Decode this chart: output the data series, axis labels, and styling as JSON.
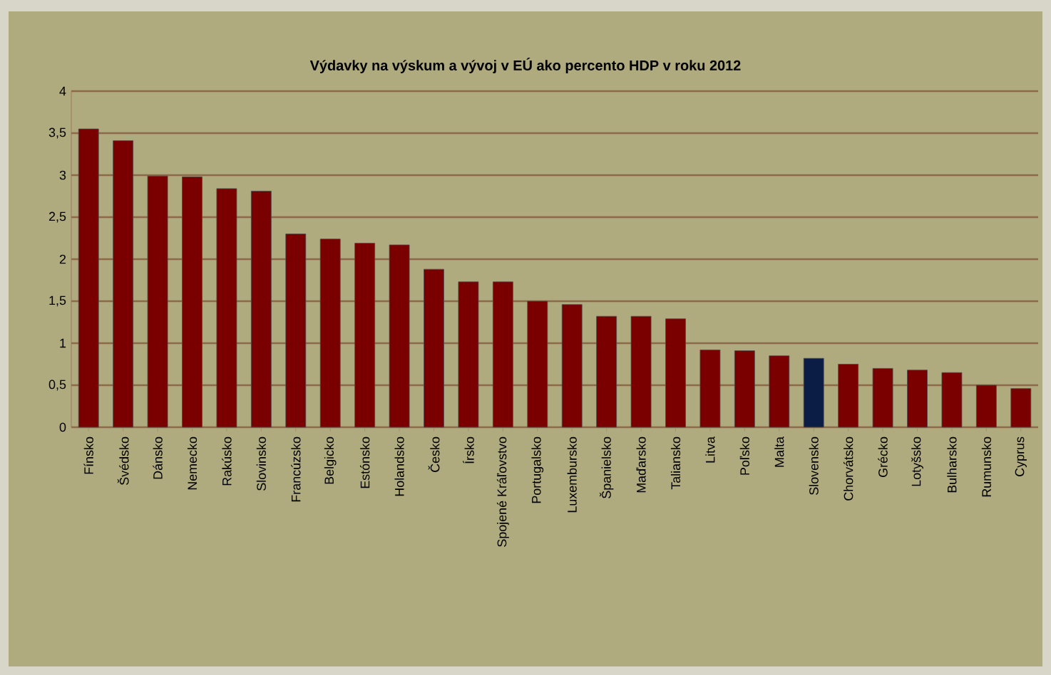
{
  "chart_data": {
    "type": "bar",
    "title": "Výdavky na výskum a vývoj v EÚ ako percento HDP v roku 2012",
    "categories": [
      "Fínsko",
      "Švédsko",
      "Dánsko",
      "Nemecko",
      "Rakúsko",
      "Slovinsko",
      "Francúzsko",
      "Belgicko",
      "Estónsko",
      "Holandsko",
      "Česko",
      "Írsko",
      "Spojené Kráľovstvo",
      "Portugalsko",
      "Luxembursko",
      "Španielsko",
      "Maďarsko",
      "Taliansko",
      "Litva",
      "Poľsko",
      "Malta",
      "Slovensko",
      "Chorvátsko",
      "Grécko",
      "Lotyšsko",
      "Bulharsko",
      "Rumunsko",
      "Cyprus"
    ],
    "values": [
      3.55,
      3.41,
      2.99,
      2.98,
      2.84,
      2.81,
      2.3,
      2.24,
      2.19,
      2.17,
      1.88,
      1.73,
      1.73,
      1.5,
      1.46,
      1.32,
      1.32,
      1.29,
      0.92,
      0.91,
      0.85,
      0.82,
      0.75,
      0.7,
      0.68,
      0.65,
      0.5,
      0.46
    ],
    "colors": [
      "#7a0000",
      "#7a0000",
      "#7a0000",
      "#7a0000",
      "#7a0000",
      "#7a0000",
      "#7a0000",
      "#7a0000",
      "#7a0000",
      "#7a0000",
      "#7a0000",
      "#7a0000",
      "#7a0000",
      "#7a0000",
      "#7a0000",
      "#7a0000",
      "#7a0000",
      "#7a0000",
      "#7a0000",
      "#7a0000",
      "#7a0000",
      "#0b1c45",
      "#7a0000",
      "#7a0000",
      "#7a0000",
      "#7a0000",
      "#7a0000",
      "#7a0000"
    ],
    "ylim": [
      0,
      4
    ],
    "yticks": [
      0,
      {
        "value": 0.5,
        "label": "0,5"
      },
      1,
      {
        "value": 1.5,
        "label": "1,5"
      },
      2,
      {
        "value": 2.5,
        "label": "2,5"
      },
      3,
      {
        "value": 3.5,
        "label": "3,5"
      },
      4
    ],
    "grid": "y"
  }
}
